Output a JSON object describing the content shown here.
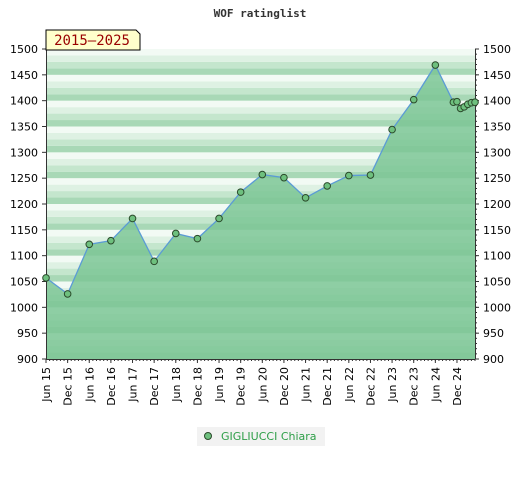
{
  "chart_data": {
    "type": "area",
    "title": "WOF ratinglist",
    "period_label": "2015–2025",
    "ylim": [
      900,
      1500
    ],
    "y_ticks": [
      900,
      950,
      1000,
      1050,
      1100,
      1150,
      1200,
      1250,
      1300,
      1350,
      1400,
      1450,
      1500
    ],
    "x_tick_labels": [
      "Jun 15",
      "Dec 15",
      "Jun 16",
      "Dec 16",
      "Jun 17",
      "Dec 17",
      "Jun 18",
      "Dec 18",
      "Jun 19",
      "Dec 19",
      "Jun 20",
      "Dec 20",
      "Jun 21",
      "Dec 21",
      "Jun 22",
      "Dec 22",
      "Jun 23",
      "Dec 23",
      "Jun 24",
      "Dec 24"
    ],
    "x_tick_positions": [
      0,
      6,
      12,
      18,
      24,
      30,
      36,
      42,
      48,
      54,
      60,
      66,
      72,
      78,
      84,
      90,
      96,
      102,
      108,
      114
    ],
    "x_range": [
      0,
      119
    ],
    "series": [
      {
        "name": "GIGLIUCCI Chiara",
        "x": [
          0,
          6,
          12,
          18,
          24,
          30,
          36,
          42,
          48,
          54,
          60,
          66,
          72,
          78,
          84,
          90,
          96,
          102,
          108,
          113,
          114,
          115,
          116,
          117,
          118,
          119
        ],
        "values": [
          1057,
          1026,
          1122,
          1129,
          1172,
          1089,
          1143,
          1133,
          1172,
          1223,
          1257,
          1251,
          1212,
          1235,
          1255,
          1256,
          1344,
          1402,
          1469,
          1397,
          1398,
          1385,
          1388,
          1393,
          1396,
          1397
        ]
      }
    ],
    "legend": {
      "position": "bottom-center"
    },
    "colors": {
      "line": "#5b9bd5",
      "fill": "#7dc595",
      "marker_fill": "#6ec07e",
      "marker_stroke": "#2b4a2b",
      "legend_text": "#2e9e48"
    }
  }
}
